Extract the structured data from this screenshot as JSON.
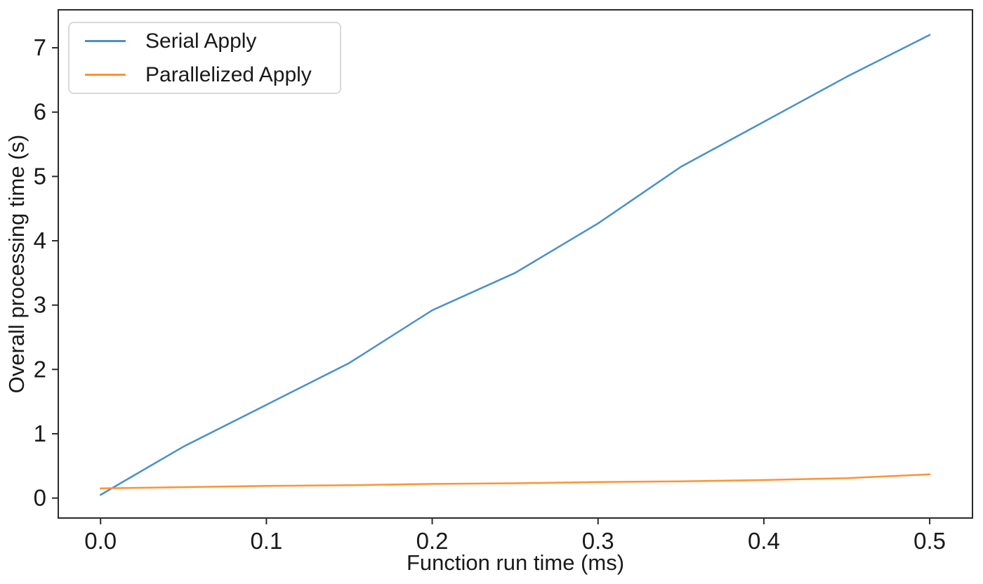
{
  "chart_data": {
    "type": "line",
    "title": "",
    "xlabel": "Function run time (ms)",
    "ylabel": "Overall processing time (s)",
    "x": [
      0.0,
      0.05,
      0.1,
      0.15,
      0.2,
      0.25,
      0.3,
      0.35,
      0.4,
      0.45,
      0.5
    ],
    "series": [
      {
        "name": "Serial Apply",
        "color": "#4a90c9",
        "values": [
          0.05,
          0.8,
          1.45,
          2.1,
          2.92,
          3.5,
          4.27,
          5.15,
          5.85,
          6.55,
          7.2
        ]
      },
      {
        "name": "Parallelized Apply",
        "color": "#ff9233",
        "values": [
          0.15,
          0.17,
          0.19,
          0.2,
          0.22,
          0.23,
          0.25,
          0.26,
          0.28,
          0.31,
          0.37
        ]
      }
    ],
    "xticks": {
      "values": [
        0.0,
        0.1,
        0.2,
        0.3,
        0.4,
        0.5
      ],
      "labels": [
        "0.0",
        "0.1",
        "0.2",
        "0.3",
        "0.4",
        "0.5"
      ]
    },
    "yticks": {
      "values": [
        0,
        1,
        2,
        3,
        4,
        5,
        6,
        7
      ],
      "labels": [
        "0",
        "1",
        "2",
        "3",
        "4",
        "5",
        "6",
        "7"
      ]
    },
    "xlim": [
      -0.0255,
      0.5258
    ],
    "ylim": [
      -0.31,
      7.59
    ],
    "grid": false,
    "legend_position": "upper-left",
    "spine_color": "#2b2b2b",
    "line_width": 2.5
  }
}
